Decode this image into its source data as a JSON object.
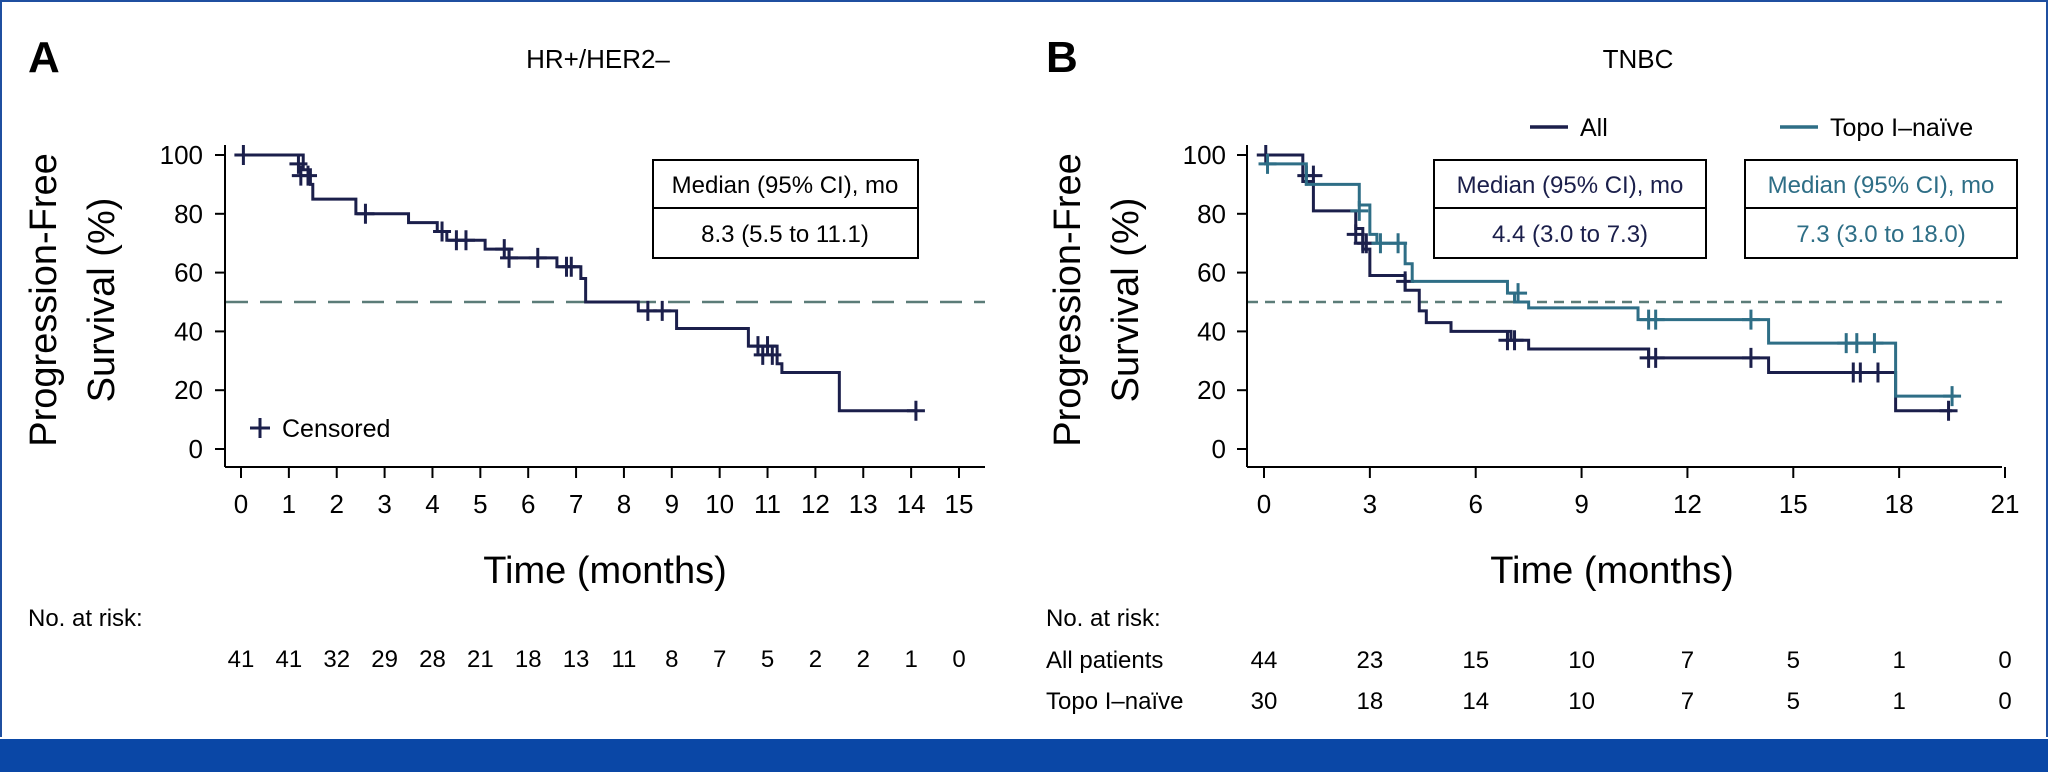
{
  "chart_data": [
    {
      "type": "line",
      "panel_label": "A",
      "title": "HR+/HER2–",
      "xlabel": "Time (months)",
      "ylabel_line1": "Progression-Free",
      "ylabel_line2": "Survival (%)",
      "xlim": [
        0,
        15
      ],
      "ylim": [
        0,
        100
      ],
      "x_ticks": [
        "0",
        "1",
        "2",
        "3",
        "4",
        "5",
        "6",
        "7",
        "8",
        "9",
        "10",
        "11",
        "12",
        "13",
        "14",
        "15"
      ],
      "y_ticks": [
        "0",
        "20",
        "40",
        "60",
        "80",
        "100"
      ],
      "median_reference_line": 50,
      "censored_legend": "Censored",
      "series": [
        {
          "name": "HR+/HER2–",
          "color": "#1b1f4b",
          "steps": [
            [
              0,
              100
            ],
            [
              1.3,
              95
            ],
            [
              1.45,
              90
            ],
            [
              1.5,
              85
            ],
            [
              2.4,
              80
            ],
            [
              3.5,
              77
            ],
            [
              4.1,
              74
            ],
            [
              4.3,
              71
            ],
            [
              5.1,
              68
            ],
            [
              5.6,
              65
            ],
            [
              6.6,
              62
            ],
            [
              7.1,
              58
            ],
            [
              7.2,
              50
            ],
            [
              8.3,
              47
            ],
            [
              9.1,
              41
            ],
            [
              10.6,
              35
            ],
            [
              11.2,
              29
            ],
            [
              11.3,
              26
            ],
            [
              12.5,
              13
            ],
            [
              14.1,
              13
            ]
          ],
          "censored": [
            [
              0.05,
              100
            ],
            [
              1.2,
              97
            ],
            [
              1.25,
              93
            ],
            [
              1.4,
              93
            ],
            [
              2.6,
              80
            ],
            [
              4.2,
              74
            ],
            [
              4.5,
              71
            ],
            [
              4.7,
              71
            ],
            [
              5.5,
              68
            ],
            [
              5.6,
              65
            ],
            [
              6.2,
              65
            ],
            [
              6.8,
              62
            ],
            [
              6.9,
              62
            ],
            [
              8.5,
              47
            ],
            [
              8.8,
              47
            ],
            [
              10.8,
              35
            ],
            [
              10.9,
              32
            ],
            [
              11.0,
              35
            ],
            [
              11.1,
              32
            ],
            [
              14.1,
              13
            ]
          ]
        }
      ],
      "median_box": {
        "header": "Median (95% CI), mo",
        "value": "8.3 (5.5 to 11.1)"
      },
      "risk_table": {
        "label": "No. at risk:",
        "rows": [
          {
            "name": "",
            "values": [
              "41",
              "41",
              "32",
              "29",
              "28",
              "21",
              "18",
              "13",
              "11",
              "8",
              "7",
              "5",
              "2",
              "2",
              "1",
              "0"
            ]
          }
        ]
      }
    },
    {
      "type": "line",
      "panel_label": "B",
      "title": "TNBC",
      "xlabel": "Time (months)",
      "ylabel_line1": "Progression-Free",
      "ylabel_line2": "Survival (%)",
      "xlim": [
        0,
        21
      ],
      "ylim": [
        0,
        100
      ],
      "x_ticks": [
        "0",
        "3",
        "6",
        "9",
        "12",
        "15",
        "18",
        "21"
      ],
      "y_ticks": [
        "0",
        "20",
        "40",
        "60",
        "80",
        "100"
      ],
      "median_reference_line": 50,
      "legend": [
        {
          "name": "All",
          "color": "#1b1f4b"
        },
        {
          "name": "Topo I–naïve",
          "color": "#2e6e86"
        }
      ],
      "series": [
        {
          "name": "All",
          "color": "#1b1f4b",
          "steps": [
            [
              0,
              100
            ],
            [
              1.1,
              91
            ],
            [
              1.4,
              81
            ],
            [
              2.6,
              75
            ],
            [
              2.8,
              68
            ],
            [
              3.0,
              59
            ],
            [
              4.0,
              54
            ],
            [
              4.4,
              47
            ],
            [
              4.6,
              43
            ],
            [
              5.3,
              40
            ],
            [
              7.0,
              37
            ],
            [
              7.5,
              34
            ],
            [
              10.9,
              31
            ],
            [
              14.3,
              26
            ],
            [
              17.9,
              13
            ],
            [
              19.5,
              13
            ]
          ],
          "censored": [
            [
              0.05,
              100
            ],
            [
              1.2,
              93
            ],
            [
              1.4,
              93
            ],
            [
              2.6,
              73
            ],
            [
              2.8,
              70
            ],
            [
              2.9,
              70
            ],
            [
              4.0,
              57
            ],
            [
              6.9,
              37
            ],
            [
              7.1,
              37
            ],
            [
              10.9,
              31
            ],
            [
              11.1,
              31
            ],
            [
              13.8,
              31
            ],
            [
              16.7,
              26
            ],
            [
              16.9,
              26
            ],
            [
              17.4,
              26
            ],
            [
              19.4,
              13
            ]
          ]
        },
        {
          "name": "Topo I–naïve",
          "color": "#2e6e86",
          "steps": [
            [
              0,
              97
            ],
            [
              1.2,
              90
            ],
            [
              2.7,
              83
            ],
            [
              3.0,
              73
            ],
            [
              3.2,
              70
            ],
            [
              4.0,
              63
            ],
            [
              4.2,
              57
            ],
            [
              6.9,
              53
            ],
            [
              7.1,
              50
            ],
            [
              7.5,
              48
            ],
            [
              10.6,
              44
            ],
            [
              14.3,
              36
            ],
            [
              17.9,
              18
            ],
            [
              19.6,
              18
            ]
          ],
          "censored": [
            [
              0.1,
              97
            ],
            [
              2.7,
              81
            ],
            [
              3.3,
              70
            ],
            [
              3.8,
              70
            ],
            [
              7.2,
              53
            ],
            [
              10.9,
              44
            ],
            [
              11.1,
              44
            ],
            [
              13.8,
              44
            ],
            [
              16.5,
              36
            ],
            [
              16.8,
              36
            ],
            [
              17.3,
              36
            ],
            [
              19.5,
              18
            ]
          ]
        }
      ],
      "median_boxes": [
        {
          "header": "Median (95% CI), mo",
          "value": "4.4 (3.0 to 7.3)",
          "color": "#1b1f4b"
        },
        {
          "header": "Median (95% CI), mo",
          "value": "7.3 (3.0 to 18.0)",
          "color": "#2e6e86"
        }
      ],
      "risk_table": {
        "label": "No. at risk:",
        "rows": [
          {
            "name": "All patients",
            "color": "#1b1f4b",
            "values": [
              "44",
              "23",
              "15",
              "10",
              "7",
              "5",
              "1",
              "0"
            ]
          },
          {
            "name": "Topo I–naïve",
            "color": "#2e6e86",
            "values": [
              "30",
              "18",
              "14",
              "10",
              "7",
              "5",
              "1",
              "0"
            ]
          }
        ]
      }
    }
  ]
}
